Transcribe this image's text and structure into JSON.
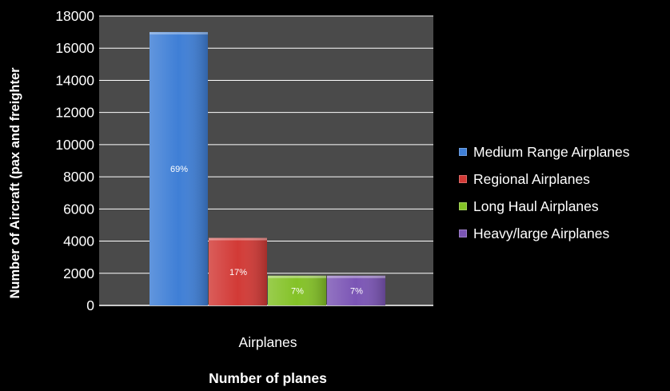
{
  "chart_data": {
    "type": "bar",
    "categories": [
      "Airplanes"
    ],
    "series": [
      {
        "name": "Medium Range Airplanes",
        "values": [
          17000
        ],
        "label": "69%",
        "color": "#3f7fd6"
      },
      {
        "name": "Regional Airplanes",
        "values": [
          4200
        ],
        "label": "17%",
        "color": "#d23a36"
      },
      {
        "name": "Long Haul Airplanes",
        "values": [
          1850
        ],
        "label": "7%",
        "color": "#84c227"
      },
      {
        "name": "Heavy/large Airplanes",
        "values": [
          1850
        ],
        "label": "7%",
        "color": "#7b55b5"
      }
    ],
    "title": "",
    "xlabel": "Number of planes",
    "ylabel": "Number of Aircraft  (pax and freighter",
    "ylim": [
      0,
      18000
    ],
    "yticks": [
      "0",
      "2000",
      "4000",
      "6000",
      "8000",
      "10000",
      "12000",
      "14000",
      "16000",
      "18000"
    ],
    "grid": true,
    "legend_position": "right",
    "colors": {
      "background": "#000000",
      "plot_area": "#4a4a4a",
      "grid": "#ffffff",
      "text": "#ffffff"
    }
  }
}
